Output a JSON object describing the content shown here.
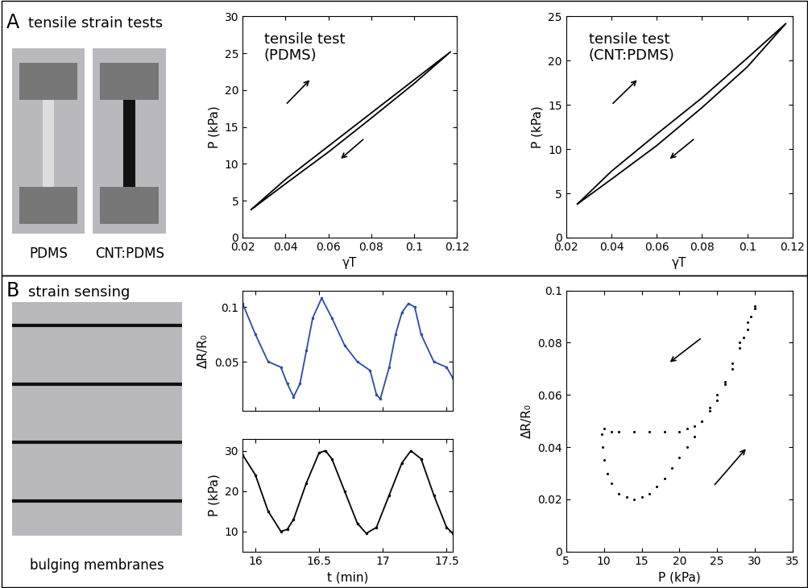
{
  "panels": [
    {
      "label": "A",
      "heading": "tensile strain tests",
      "photo_labels": [
        "PDMS",
        "CNT:PDMS"
      ]
    },
    {
      "label": "B",
      "heading": "strain sensing",
      "photo_labels": [
        "bulging membranes"
      ]
    }
  ],
  "chart_data": [
    {
      "type": "line",
      "annotation": "tensile test\n(PDMS)",
      "x_label": "γT",
      "y_label": "P (kPa)",
      "x": [
        0.024,
        0.04,
        0.06,
        0.08,
        0.1,
        0.117,
        0.1,
        0.08,
        0.06,
        0.04,
        0.024
      ],
      "values": [
        3.8,
        7.9,
        12.4,
        16.9,
        21.4,
        25.2,
        20.9,
        16.2,
        11.6,
        7.3,
        3.8
      ],
      "color": "#000000",
      "line_style": "solid",
      "xlim": [
        0.02,
        0.12
      ],
      "xticks": [
        0.02,
        0.04,
        0.06,
        0.08,
        0.1,
        0.12
      ],
      "ylim": [
        0,
        30
      ],
      "yticks": [
        0,
        5,
        10,
        15,
        20,
        25,
        30
      ]
    },
    {
      "type": "line",
      "annotation": "tensile test\n(CNT:PDMS)",
      "x_label": "γT",
      "y_label": "P (kPa)",
      "x": [
        0.025,
        0.04,
        0.06,
        0.08,
        0.1,
        0.117,
        0.1,
        0.08,
        0.06,
        0.04,
        0.025
      ],
      "values": [
        3.8,
        7.5,
        11.7,
        15.8,
        20.3,
        24.2,
        19.3,
        14.7,
        10.4,
        6.6,
        3.8
      ],
      "color": "#000000",
      "line_style": "solid",
      "xlim": [
        0.02,
        0.12
      ],
      "xticks": [
        0.02,
        0.04,
        0.06,
        0.08,
        0.1,
        0.12
      ],
      "ylim": [
        0,
        25
      ],
      "yticks": [
        0,
        5,
        10,
        15,
        20,
        25
      ]
    },
    {
      "type": "line",
      "y_label": "ΔR/R₀",
      "tick_labels": "y",
      "x": [
        15.9,
        16.0,
        16.1,
        16.2,
        16.25,
        16.3,
        16.35,
        16.4,
        16.45,
        16.52,
        16.6,
        16.7,
        16.8,
        16.9,
        16.95,
        16.98,
        17.05,
        17.1,
        17.15,
        17.2,
        17.25,
        17.3,
        17.4,
        17.5,
        17.55
      ],
      "values": [
        0.103,
        0.075,
        0.05,
        0.045,
        0.03,
        0.018,
        0.03,
        0.06,
        0.09,
        0.108,
        0.09,
        0.065,
        0.05,
        0.042,
        0.02,
        0.016,
        0.045,
        0.075,
        0.095,
        0.103,
        0.1,
        0.075,
        0.05,
        0.045,
        0.035
      ],
      "color": "#2b4ba8",
      "line_style": "solid",
      "marker": "dot",
      "xlim": [
        15.9,
        17.55
      ],
      "xticks": [
        16,
        16.5,
        17,
        17.5
      ],
      "ylim": [
        0.005,
        0.115
      ],
      "yticks": [
        0.05,
        0.1
      ]
    },
    {
      "type": "line",
      "x_label": "t (min)",
      "y_label": "P (kPa)",
      "x": [
        15.9,
        16.0,
        16.1,
        16.2,
        16.25,
        16.3,
        16.4,
        16.5,
        16.55,
        16.6,
        16.7,
        16.8,
        16.87,
        16.95,
        17.05,
        17.15,
        17.22,
        17.3,
        17.4,
        17.5,
        17.55
      ],
      "values": [
        29,
        24,
        15,
        10,
        10.5,
        13,
        22,
        29.5,
        30,
        28,
        20,
        12,
        9.5,
        11,
        19,
        27,
        30,
        28,
        19,
        11,
        9.5
      ],
      "color": "#000000",
      "line_style": "solid",
      "marker": "dot",
      "xlim": [
        15.9,
        17.55
      ],
      "xticks": [
        16,
        16.5,
        17,
        17.5
      ],
      "ylim": [
        5,
        33
      ],
      "yticks": [
        10,
        20,
        30
      ]
    },
    {
      "type": "scatter",
      "x_label": "P (kPa)",
      "y_label": "ΔR/R₀",
      "x": [
        30,
        29.5,
        29,
        28.5,
        28,
        27,
        26,
        25,
        24,
        23,
        22,
        21,
        20,
        18,
        16,
        14,
        12,
        11,
        10,
        9.7,
        9.8,
        10,
        10.5,
        11,
        12,
        13,
        14,
        15,
        16,
        17,
        18,
        19,
        20,
        21,
        22,
        23,
        24,
        25,
        26,
        27,
        28,
        29,
        30
      ],
      "values": [
        0.094,
        0.09,
        0.085,
        0.082,
        0.078,
        0.07,
        0.064,
        0.058,
        0.054,
        0.05,
        0.048,
        0.047,
        0.046,
        0.046,
        0.046,
        0.046,
        0.046,
        0.046,
        0.047,
        0.045,
        0.04,
        0.035,
        0.03,
        0.026,
        0.022,
        0.021,
        0.02,
        0.021,
        0.022,
        0.025,
        0.028,
        0.032,
        0.036,
        0.04,
        0.044,
        0.05,
        0.055,
        0.06,
        0.065,
        0.072,
        0.08,
        0.088,
        0.093
      ],
      "color": "#000000",
      "marker": "dot",
      "xlim": [
        5,
        35
      ],
      "xticks": [
        5,
        10,
        15,
        20,
        25,
        30,
        35
      ],
      "ylim": [
        0,
        0.1
      ],
      "yticks": [
        0,
        0.02,
        0.04,
        0.06,
        0.08,
        0.1
      ]
    }
  ]
}
